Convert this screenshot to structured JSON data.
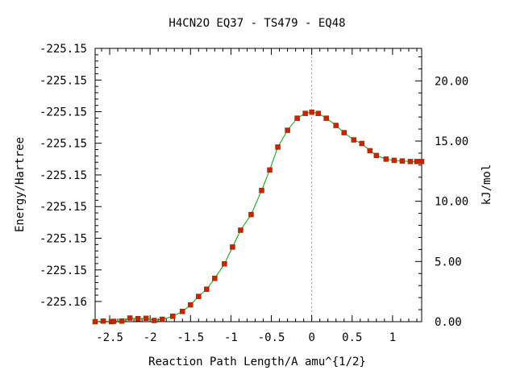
{
  "chart_data": {
    "type": "line",
    "title": "H4CN2O   EQ37 - TS479 - EQ48",
    "xlabel": "Reaction Path Length/A amu^{1/2}",
    "ylabel": "Energy/Hartree",
    "y2label": "kJ/mol",
    "xlim": [
      -2.68,
      1.36
    ],
    "y2lim": [
      0.0,
      22.7
    ],
    "x_ticks": [
      "-2.5",
      "-2",
      "-1.5",
      "-1",
      "-0.5",
      "0",
      "0.5",
      "1"
    ],
    "x_tick_values": [
      -2.5,
      -2.0,
      -1.5,
      -1.0,
      -0.5,
      0.0,
      0.5,
      1.0
    ],
    "y_left_ticks": [
      "-225.15",
      "-225.15",
      "-225.15",
      "-225.15",
      "-225.15",
      "-225.15",
      "-225.15",
      "-225.15",
      "-225.16"
    ],
    "y_left_tick_values_kj": [
      22.7,
      20.07,
      17.44,
      14.82,
      12.19,
      9.56,
      6.93,
      4.3,
      1.68
    ],
    "y_right_ticks": [
      "0.00",
      "5.00",
      "10.00",
      "15.00",
      "20.00"
    ],
    "y_right_tick_values": [
      0.0,
      5.0,
      10.0,
      15.0,
      20.0
    ],
    "ts_marker_x": 0.0,
    "line_color": "#00aa00",
    "point_color": "#cc2200",
    "series": [
      {
        "x": [
          -2.68,
          -2.58,
          -2.48,
          -2.45,
          -2.35,
          -2.25,
          -2.15,
          -2.05,
          -1.95,
          -1.85,
          -1.72,
          -1.6,
          -1.5,
          -1.4,
          -1.3,
          -1.2,
          -1.08,
          -0.98,
          -0.88,
          -0.75,
          -0.62,
          -0.52,
          -0.42,
          -0.3,
          -0.18,
          -0.08,
          0.0,
          0.08,
          0.18,
          0.3,
          0.4,
          0.52,
          0.62,
          0.72,
          0.8,
          0.92,
          1.02,
          1.12,
          1.22,
          1.3,
          1.36
        ],
        "y": [
          0.0,
          0.05,
          0.0,
          0.03,
          0.05,
          0.3,
          0.25,
          0.28,
          0.1,
          0.2,
          0.45,
          0.85,
          1.4,
          2.1,
          2.7,
          3.6,
          4.8,
          6.2,
          7.6,
          8.9,
          10.9,
          12.6,
          14.5,
          15.9,
          16.9,
          17.3,
          17.4,
          17.3,
          16.9,
          16.3,
          15.7,
          15.1,
          14.8,
          14.2,
          13.8,
          13.5,
          13.4,
          13.35,
          13.3,
          13.3,
          13.3
        ]
      }
    ]
  }
}
